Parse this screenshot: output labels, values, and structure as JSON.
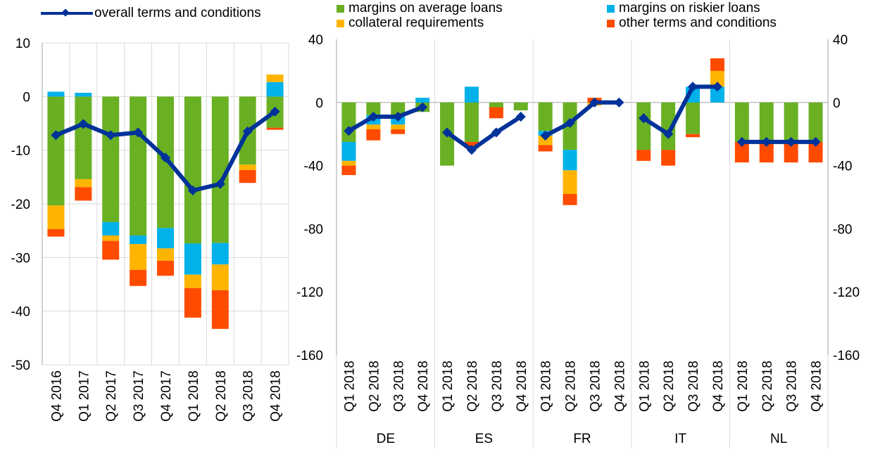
{
  "colors": {
    "margins_average": "#6ab023",
    "margins_riskier": "#00b1ea",
    "collateral": "#ffb400",
    "other": "#ff4b00",
    "overall": "#003299",
    "grid": "#d9d9d9",
    "axis": "#a6a6a6"
  },
  "legend": {
    "overall": "overall terms and conditions",
    "margins_average": "margins on average loans",
    "margins_riskier": "margins on riskier loans",
    "collateral": "collateral requirements",
    "other": "other terms and conditions"
  },
  "chart_data": [
    {
      "type": "bar",
      "stacked": true,
      "with_line": true,
      "categories": [
        "Q4 2016",
        "Q1 2017",
        "Q2 2017",
        "Q3 2017",
        "Q4 2017",
        "Q1 2018",
        "Q2 2018",
        "Q3 2018",
        "Q4 2018"
      ],
      "ylim": [
        -50,
        10
      ],
      "yticks": [
        "10",
        "0",
        "-10",
        "-20",
        "-30",
        "-40",
        "-50"
      ],
      "grid": true,
      "series": [
        {
          "name": "margins on average loans",
          "values": [
            -20.3,
            -15.4,
            -23.4,
            -25.9,
            -24.5,
            -27.4,
            -27.3,
            -12.7,
            -5.8
          ]
        },
        {
          "name": "margins on riskier loans",
          "values": [
            0.9,
            0.7,
            -2.5,
            -1.6,
            -3.8,
            -5.8,
            -4.0,
            0.0,
            2.7
          ]
        },
        {
          "name": "collateral requirements",
          "values": [
            -4.4,
            -1.5,
            -1.0,
            -4.8,
            -2.3,
            -2.5,
            -4.8,
            -1.0,
            1.4
          ]
        },
        {
          "name": "other terms and conditions",
          "values": [
            -1.4,
            -2.5,
            -3.5,
            -3.0,
            -2.8,
            -5.5,
            -7.2,
            -2.4,
            -0.4
          ]
        }
      ],
      "line": {
        "name": "overall terms and conditions",
        "values": [
          -7.2,
          -5.1,
          -7.2,
          -6.7,
          -11.4,
          -17.5,
          -16.3,
          -6.5,
          -2.8
        ]
      }
    },
    {
      "type": "bar",
      "stacked": true,
      "with_line": true,
      "groups": [
        "DE",
        "ES",
        "FR",
        "IT",
        "NL"
      ],
      "categories": [
        "Q1 2018",
        "Q2 2018",
        "Q3 2018",
        "Q4 2018"
      ],
      "ylim": [
        -160,
        40
      ],
      "yticks": [
        "40",
        "0",
        "-40",
        "-80",
        "-120",
        "-160"
      ],
      "grid": true,
      "series": [
        {
          "name": "margins on average loans",
          "values": [
            [
              -25,
              -8,
              -8,
              -6
            ],
            [
              -40,
              -25,
              -3,
              -5
            ],
            [
              -18,
              -30,
              0,
              0
            ],
            [
              -30,
              -30,
              -20,
              0
            ],
            [
              -25,
              -25,
              -25,
              -25
            ]
          ]
        },
        {
          "name": "margins on riskier loans",
          "values": [
            [
              -12,
              -6,
              -6,
              3
            ],
            [
              0,
              10,
              0,
              0
            ],
            [
              -3,
              -13,
              0,
              0
            ],
            [
              0,
              0,
              10,
              10
            ],
            [
              0,
              0,
              0,
              0
            ]
          ]
        },
        {
          "name": "collateral requirements",
          "values": [
            [
              -3,
              -3,
              -3,
              0
            ],
            [
              0,
              0,
              0,
              0
            ],
            [
              -6,
              -15,
              -2,
              0
            ],
            [
              0,
              0,
              0,
              10
            ],
            [
              0,
              0,
              0,
              0
            ]
          ]
        },
        {
          "name": "other terms and conditions",
          "values": [
            [
              -6,
              -7,
              -3,
              0
            ],
            [
              0,
              -4,
              -7,
              0
            ],
            [
              -4,
              -7,
              3,
              0
            ],
            [
              -7,
              -10,
              -2,
              8
            ],
            [
              -13,
              -13,
              -13,
              -13
            ]
          ]
        }
      ],
      "line": {
        "name": "overall terms and conditions",
        "values": [
          [
            -18,
            -9,
            -9,
            -3
          ],
          [
            -19,
            -30,
            -19,
            -9
          ],
          [
            -21,
            -13,
            0,
            0
          ],
          [
            -10,
            -20,
            10,
            10
          ],
          [
            -25,
            -25,
            -25,
            -25
          ]
        ]
      }
    }
  ]
}
